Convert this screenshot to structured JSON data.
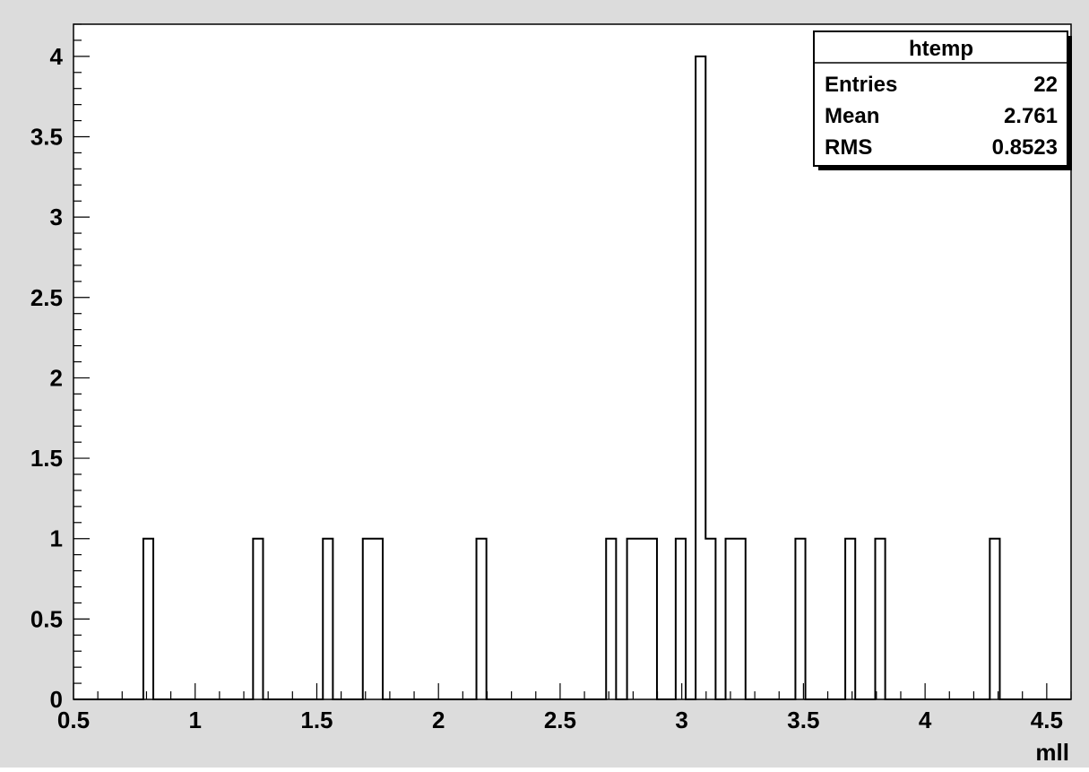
{
  "chart_data": {
    "type": "histogram",
    "xlabel": "mll",
    "ylabel": "",
    "xlim": [
      0.5,
      4.6
    ],
    "ylim": [
      0,
      4.2
    ],
    "grid": false,
    "x_ticks": [
      "0.5",
      "1",
      "1.5",
      "2",
      "2.5",
      "3",
      "3.5",
      "4",
      "4.5"
    ],
    "y_ticks": [
      "0",
      "0.5",
      "1",
      "1.5",
      "2",
      "2.5",
      "3",
      "3.5",
      "4"
    ],
    "bin_width": 0.041,
    "bins": [
      {
        "low": 0.787,
        "value": 1
      },
      {
        "low": 1.238,
        "value": 1
      },
      {
        "low": 1.525,
        "value": 1
      },
      {
        "low": 1.689,
        "value": 1
      },
      {
        "low": 1.73,
        "value": 1
      },
      {
        "low": 2.156,
        "value": 1
      },
      {
        "low": 2.689,
        "value": 1
      },
      {
        "low": 2.775,
        "value": 1
      },
      {
        "low": 2.816,
        "value": 1
      },
      {
        "low": 2.857,
        "value": 1
      },
      {
        "low": 2.975,
        "value": 1
      },
      {
        "low": 3.057,
        "value": 4
      },
      {
        "low": 3.098,
        "value": 1
      },
      {
        "low": 3.18,
        "value": 1
      },
      {
        "low": 3.221,
        "value": 1
      },
      {
        "low": 3.467,
        "value": 1
      },
      {
        "low": 3.672,
        "value": 1
      },
      {
        "low": 3.795,
        "value": 1
      },
      {
        "low": 4.266,
        "value": 1
      }
    ],
    "stats": {
      "title": "htemp",
      "rows": [
        {
          "label": "Entries",
          "value": "22"
        },
        {
          "label": "Mean",
          "value": "2.761"
        },
        {
          "label": "RMS",
          "value": "0.8523"
        }
      ]
    }
  }
}
